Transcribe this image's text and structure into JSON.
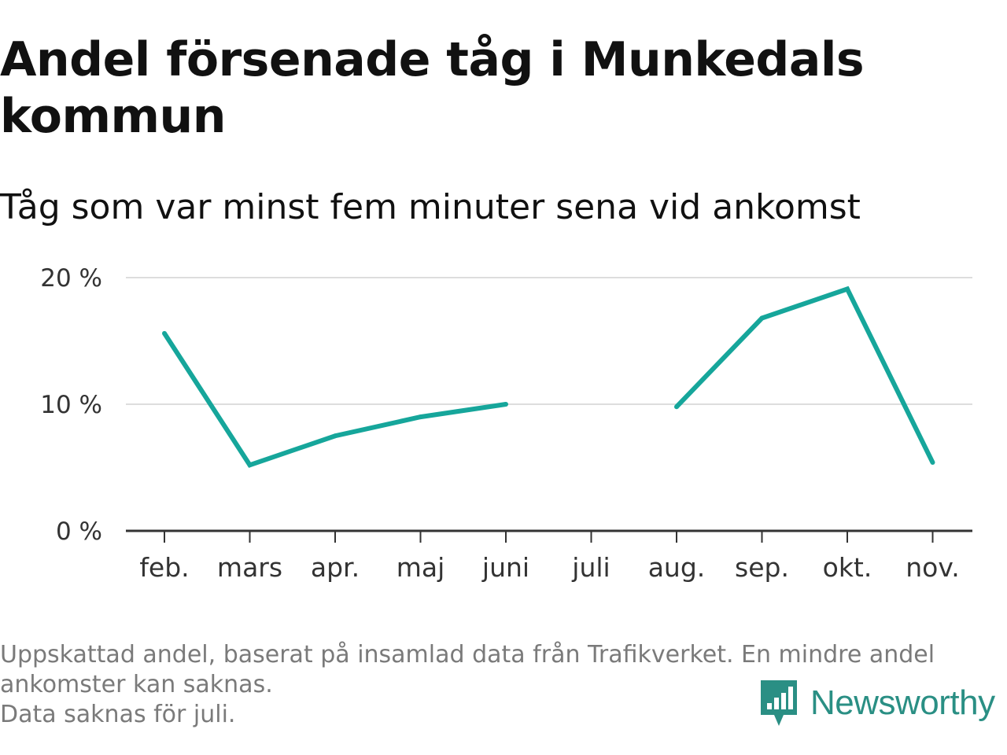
{
  "header": {
    "title": "Andel försenade tåg i Munkedals kommun",
    "subtitle": "Tåg som var minst fem minuter sena vid ankomst"
  },
  "chart_data": {
    "type": "line",
    "categories": [
      "feb.",
      "mars",
      "apr.",
      "maj",
      "juni",
      "juli",
      "aug.",
      "sep.",
      "okt.",
      "nov."
    ],
    "series": [
      {
        "values": [
          15.6,
          5.2,
          7.5,
          9.0,
          10.0,
          null,
          9.8,
          16.8,
          19.1,
          5.4
        ]
      }
    ],
    "ylim": [
      0,
      20
    ],
    "yticks": [
      0,
      10,
      20
    ],
    "ytick_labels": [
      "0 %",
      "10 %",
      "20 %"
    ],
    "grid": true,
    "line_color": "#16a69b"
  },
  "footnote": {
    "line1": "Uppskattad andel, baserat på insamlad data från Trafikverket. En mindre andel",
    "line2": "ankomster kan saknas.",
    "line3": "Data saknas för juli."
  },
  "logo": {
    "text": "Newsworthy",
    "icon": "newsworthy-chart-icon",
    "color": "#2a8f84"
  }
}
